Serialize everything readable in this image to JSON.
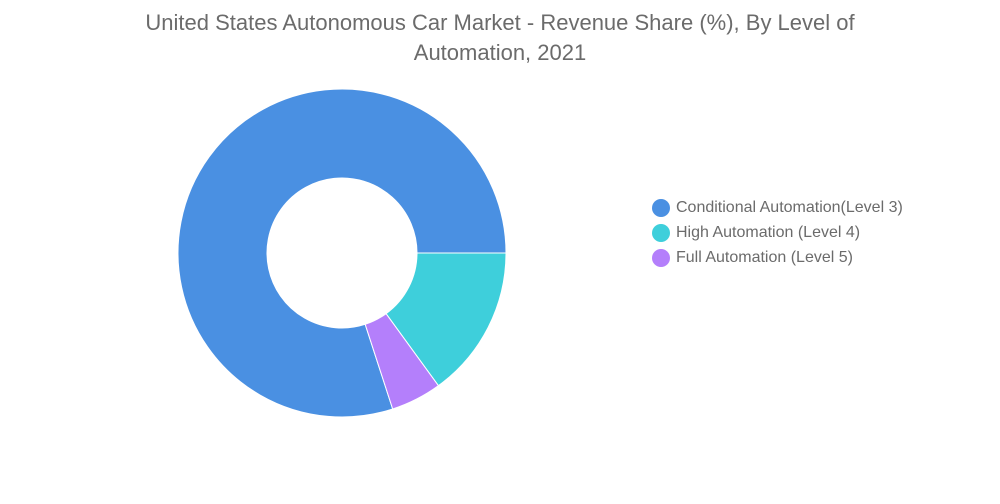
{
  "chart_data": {
    "type": "pie",
    "variant": "donut",
    "title": "United States Autonomous Car Market - Revenue Share (%), By Level of Automation, 2021",
    "title_lines": [
      "United States Autonomous Car Market - Revenue Share (%), By Level of",
      "Automation, 2021"
    ],
    "categories": [
      "Conditional Automation(Level 3)",
      "High Automation (Level 4)",
      "Full Automation (Level 5)"
    ],
    "values": [
      80,
      15,
      5
    ],
    "unit": "%",
    "colors": [
      "#4a90e2",
      "#3ecfdb",
      "#b47ffb"
    ],
    "legend_position": "right"
  }
}
